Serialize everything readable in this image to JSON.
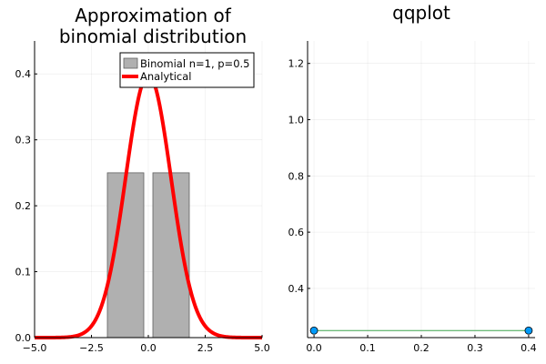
{
  "chart_data": [
    {
      "type": "bar",
      "title_lines": [
        "Approximation of",
        "binomial distribution"
      ],
      "xlabel": "",
      "ylabel": "",
      "xlim": [
        -5,
        5
      ],
      "ylim": [
        0,
        0.45
      ],
      "grid": true,
      "legend_position": "top-right",
      "x_ticks": [
        {
          "value": -5,
          "label": "−5.0"
        },
        {
          "value": -2.5,
          "label": "−2.5"
        },
        {
          "value": 0,
          "label": "0.0"
        },
        {
          "value": 2.5,
          "label": "2.5"
        },
        {
          "value": 5,
          "label": "5.0"
        }
      ],
      "y_ticks": [
        {
          "value": 0,
          "label": "0.0"
        },
        {
          "value": 0.1,
          "label": "0.1"
        },
        {
          "value": 0.2,
          "label": "0.2"
        },
        {
          "value": 0.3,
          "label": "0.3"
        },
        {
          "value": 0.4,
          "label": "0.4"
        }
      ],
      "bars": {
        "name": "Binomial n=1, p=0.5",
        "color": "#b0b0b0",
        "edge_color": "#606060",
        "items": [
          {
            "x0": -1.8,
            "x1": -0.2,
            "value": 0.25
          },
          {
            "x0": 0.2,
            "x1": 1.8,
            "value": 0.25
          }
        ]
      },
      "curve": {
        "name": "Analytical",
        "color": "#ff0000",
        "mean": 0,
        "sd": 1,
        "x_range": [
          -5,
          5
        ]
      }
    },
    {
      "type": "scatter",
      "title": "qqplot",
      "xlabel": "",
      "ylabel": "",
      "xlim": [
        -0.012,
        0.412
      ],
      "ylim": [
        0.225,
        1.28
      ],
      "grid": true,
      "x_ticks": [
        {
          "value": 0,
          "label": "0.0"
        },
        {
          "value": 0.1,
          "label": "0.1"
        },
        {
          "value": 0.2,
          "label": "0.2"
        },
        {
          "value": 0.3,
          "label": "0.3"
        },
        {
          "value": 0.4,
          "label": "0.4"
        }
      ],
      "y_ticks": [
        {
          "value": 0.4,
          "label": "0.4"
        },
        {
          "value": 0.6,
          "label": "0.6"
        },
        {
          "value": 0.8,
          "label": "0.8"
        },
        {
          "value": 1.0,
          "label": "1.0"
        },
        {
          "value": 1.2,
          "label": "1.2"
        }
      ],
      "points": {
        "color": "#009af9",
        "x": [
          0,
          0.4
        ],
        "y": [
          0.25,
          0.25
        ]
      },
      "reference_line": {
        "color": "#3da44d",
        "x": [
          0,
          0.4
        ],
        "y": [
          0.25,
          0.25
        ]
      }
    }
  ]
}
